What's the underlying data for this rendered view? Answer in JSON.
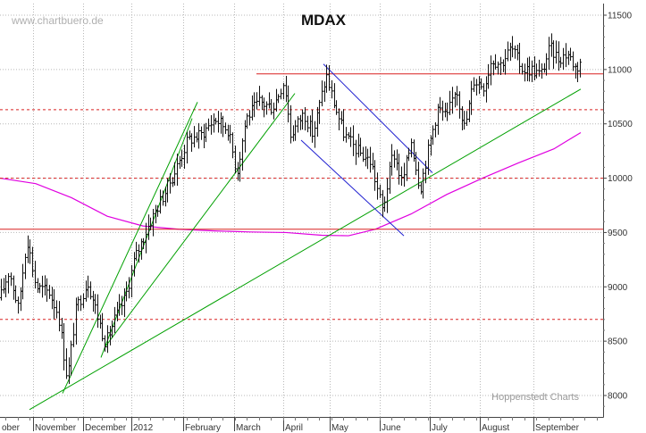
{
  "watermark": "www.chartbuero.de",
  "credit": "Hoppenstedt Charts",
  "chart_data": {
    "type": "line",
    "subtype": "ohlc-bars",
    "title": "MDAX",
    "y_axis": {
      "position": "right",
      "ylim": [
        7820,
        11580
      ],
      "ticks": [
        8000,
        8500,
        9000,
        9500,
        10000,
        10500,
        11000,
        11500
      ],
      "tick_labels": [
        "8000",
        "8500",
        "9000",
        "9500",
        "10000",
        "10500",
        "11000",
        "11500"
      ]
    },
    "x_axis": {
      "months": [
        {
          "label": "ober",
          "x": 0
        },
        {
          "label": "November",
          "x": 37
        },
        {
          "label": "December",
          "x": 93
        },
        {
          "label": "2012",
          "x": 147
        },
        {
          "label": "February",
          "x": 205
        },
        {
          "label": "March",
          "x": 262
        },
        {
          "label": "April",
          "x": 317
        },
        {
          "label": "May",
          "x": 369
        },
        {
          "label": "June",
          "x": 425
        },
        {
          "label": "July",
          "x": 481
        },
        {
          "label": "August",
          "x": 537
        },
        {
          "label": "September",
          "x": 597
        }
      ],
      "xlim": [
        0,
        675
      ]
    },
    "grid": true,
    "price_series": {
      "name": "MDAX",
      "keypoints": [
        [
          0,
          8900
        ],
        [
          10,
          9150
        ],
        [
          20,
          8800
        ],
        [
          30,
          9450
        ],
        [
          40,
          9000
        ],
        [
          55,
          8950
        ],
        [
          65,
          8750
        ],
        [
          75,
          8150
        ],
        [
          85,
          8800
        ],
        [
          98,
          9050
        ],
        [
          110,
          8700
        ],
        [
          118,
          8480
        ],
        [
          128,
          8700
        ],
        [
          140,
          8900
        ],
        [
          150,
          9250
        ],
        [
          165,
          9550
        ],
        [
          180,
          9800
        ],
        [
          195,
          10050
        ],
        [
          210,
          10350
        ],
        [
          225,
          10400
        ],
        [
          240,
          10550
        ],
        [
          255,
          10450
        ],
        [
          265,
          10050
        ],
        [
          275,
          10550
        ],
        [
          290,
          10700
        ],
        [
          305,
          10650
        ],
        [
          318,
          10900
        ],
        [
          325,
          10400
        ],
        [
          340,
          10600
        ],
        [
          350,
          10400
        ],
        [
          365,
          10950
        ],
        [
          375,
          10650
        ],
        [
          385,
          10400
        ],
        [
          400,
          10250
        ],
        [
          415,
          10150
        ],
        [
          428,
          9700
        ],
        [
          440,
          10250
        ],
        [
          450,
          9950
        ],
        [
          460,
          10350
        ],
        [
          470,
          9900
        ],
        [
          480,
          10300
        ],
        [
          490,
          10650
        ],
        [
          500,
          10550
        ],
        [
          510,
          10850
        ],
        [
          520,
          10450
        ],
        [
          530,
          10900
        ],
        [
          542,
          10850
        ],
        [
          550,
          11100
        ],
        [
          560,
          11050
        ],
        [
          572,
          11200
        ],
        [
          585,
          11000
        ],
        [
          595,
          11000
        ],
        [
          605,
          10950
        ],
        [
          615,
          11200
        ],
        [
          625,
          11100
        ],
        [
          635,
          11150
        ],
        [
          645,
          11000
        ],
        [
          650,
          11100
        ]
      ]
    },
    "moving_average": {
      "color": "#e000e0",
      "points": [
        [
          0,
          10000
        ],
        [
          40,
          9950
        ],
        [
          80,
          9820
        ],
        [
          120,
          9650
        ],
        [
          160,
          9560
        ],
        [
          200,
          9530
        ],
        [
          240,
          9515
        ],
        [
          280,
          9505
        ],
        [
          320,
          9500
        ],
        [
          360,
          9475
        ],
        [
          390,
          9470
        ],
        [
          420,
          9530
        ],
        [
          460,
          9670
        ],
        [
          500,
          9850
        ],
        [
          540,
          10000
        ],
        [
          580,
          10140
        ],
        [
          620,
          10270
        ],
        [
          650,
          10420
        ]
      ]
    },
    "horizontal_lines": [
      {
        "level": 9530,
        "style": "solid",
        "color": "#d92020",
        "x_from": 0,
        "x_to": 675
      },
      {
        "level": 10960,
        "style": "solid",
        "color": "#d92020",
        "x_from": 287,
        "x_to": 675
      },
      {
        "level": 8700,
        "style": "dashed",
        "color": "#d92020",
        "x_from": 0,
        "x_to": 675
      },
      {
        "level": 10000,
        "style": "dashed",
        "color": "#d92020",
        "x_from": 0,
        "x_to": 675
      },
      {
        "level": 10630,
        "style": "dashed",
        "color": "#d92020",
        "x_from": 0,
        "x_to": 675
      }
    ],
    "trend_lines": [
      {
        "color": "#00a000",
        "from": [
          33,
          7870
        ],
        "to": [
          650,
          10820
        ]
      },
      {
        "color": "#00a000",
        "from": [
          70,
          8020
        ],
        "to": [
          221,
          10700
        ]
      },
      {
        "color": "#00a000",
        "from": [
          113,
          8350
        ],
        "to": [
          215,
          10550
        ]
      },
      {
        "color": "#00a000",
        "from": [
          117,
          8440
        ],
        "to": [
          330,
          10780
        ]
      },
      {
        "color": "#2020d0",
        "from": [
          362,
          11050
        ],
        "to": [
          484,
          10050
        ]
      },
      {
        "color": "#2020d0",
        "from": [
          337,
          10350
        ],
        "to": [
          452,
          9470
        ]
      }
    ]
  }
}
